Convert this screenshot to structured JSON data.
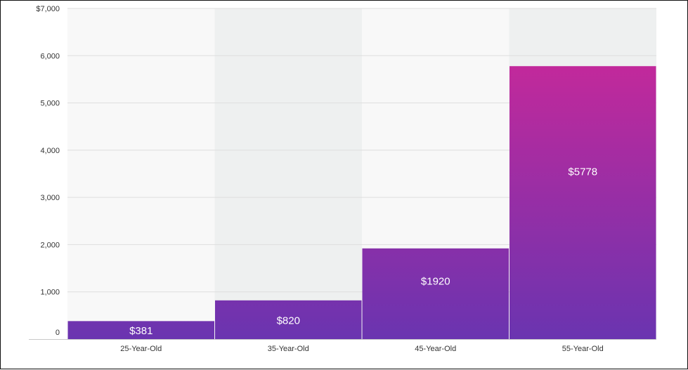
{
  "chart_data": {
    "type": "bar",
    "categories": [
      "25-Year-Old",
      "35-Year-Old",
      "45-Year-Old",
      "55-Year-Old"
    ],
    "values": [
      381,
      820,
      1920,
      5778
    ],
    "data_labels": [
      "$381",
      "$820",
      "$1920",
      "$5778"
    ],
    "title": "",
    "xlabel": "",
    "ylabel": "",
    "ylim": [
      0,
      7000
    ],
    "y_ticks": [
      0,
      1000,
      2000,
      3000,
      4000,
      5000,
      6000,
      7000
    ],
    "y_tick_labels": [
      "0",
      "1,000",
      "2,000",
      "3,000",
      "4,000",
      "5,000",
      "6,000",
      "$7,000"
    ],
    "grid": true,
    "legend": "none"
  },
  "colors": {
    "bar_top": "#c2299b",
    "bar_bottom": "#6a34b0",
    "band_light": "#f8f8f8",
    "band_dark": "#eef0f0",
    "gridline": "#dedede"
  }
}
